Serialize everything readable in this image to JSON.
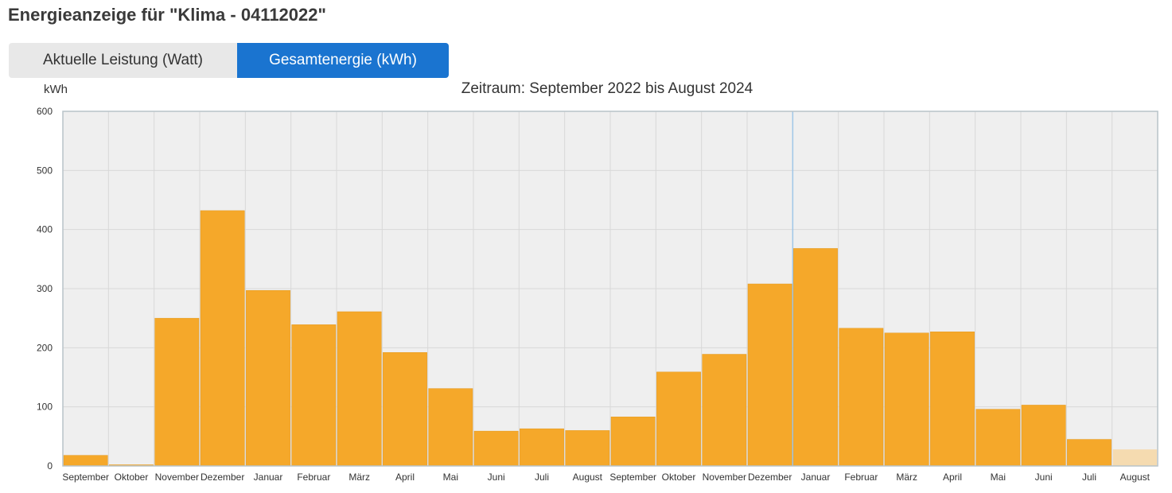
{
  "page": {
    "title": "Energieanzeige für \"Klima - 04112022\""
  },
  "tabs": [
    {
      "label": "Aktuelle Leistung (Watt)",
      "active": false
    },
    {
      "label": "Gesamtenergie (kWh)",
      "active": true
    }
  ],
  "colors": {
    "bar": "#f5a82a",
    "bar_current": "#f5dbb0",
    "tab_active": "#1a74d0",
    "plot_background": "#efefef",
    "grid": "#d8d8d8"
  },
  "chart_data": {
    "type": "bar",
    "subtitle": "Zeitraum: September 2022 bis August 2024",
    "ylabel": "kWh",
    "ylim": [
      0,
      600
    ],
    "yticks": [
      0,
      100,
      200,
      300,
      400,
      500,
      600
    ],
    "grid": true,
    "categories": [
      "September",
      "Oktober",
      "November",
      "Dezember",
      "Januar",
      "Februar",
      "März",
      "April",
      "Mai",
      "Juni",
      "Juli",
      "August",
      "September",
      "Oktober",
      "November",
      "Dezember",
      "Januar",
      "Februar",
      "März",
      "April",
      "Mai",
      "Juni",
      "Juli",
      "August"
    ],
    "values": [
      18,
      2,
      250,
      432,
      297,
      239,
      261,
      192,
      131,
      59,
      63,
      60,
      83,
      159,
      189,
      308,
      368,
      233,
      225,
      227,
      96,
      103,
      45,
      28
    ],
    "highlighted_index": 23,
    "year_divider_after_index": 15
  }
}
